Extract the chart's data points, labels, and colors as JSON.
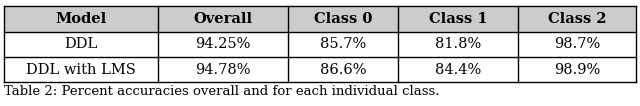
{
  "col_labels": [
    "Model",
    "Overall",
    "Class 0",
    "Class 1",
    "Class 2"
  ],
  "rows": [
    [
      "DDL",
      "94.25%",
      "85.7%",
      "81.8%",
      "98.7%"
    ],
    [
      "DDL with LMS",
      "94.78%",
      "86.6%",
      "84.4%",
      "98.9%"
    ]
  ],
  "header_fontsize": 10.5,
  "cell_fontsize": 10.5,
  "caption": "Table 2: Percent accuracies overall and for each individual class.",
  "caption_fontsize": 9.5,
  "bg_color": "#ffffff",
  "header_bg": "#cccccc",
  "line_color": "#000000",
  "line_width": 1.0
}
